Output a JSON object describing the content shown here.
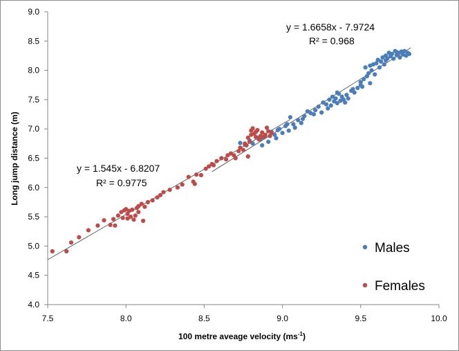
{
  "chart_data": {
    "type": "scatter",
    "title": "",
    "xlabel": "100 metre aveage velocity (ms",
    "xlabel_sup": "-1",
    "xlabel_close": ")",
    "ylabel": "Long jump distance (m)",
    "xlim": [
      7.5,
      10.0
    ],
    "ylim": [
      4.0,
      9.0
    ],
    "x_ticks": [
      "7.5",
      "8.0",
      "8.5",
      "9.0",
      "9.5",
      "10.0"
    ],
    "y_ticks": [
      "4.0",
      "4.5",
      "5.0",
      "5.5",
      "6.0",
      "6.5",
      "7.0",
      "7.5",
      "8.0",
      "8.5",
      "9.0"
    ],
    "grid": false,
    "legend_position": "bottom-right",
    "series": [
      {
        "name": "Males",
        "color": "#4a7ebb",
        "trendline": {
          "slope": 1.6658,
          "intercept": -7.9724,
          "equation": "y = 1.6658x - 7.9724",
          "r2_label": "R² = 0.968"
        },
        "points": [
          [
            8.73,
            6.76
          ],
          [
            8.76,
            6.73
          ],
          [
            8.79,
            6.8
          ],
          [
            8.81,
            6.75
          ],
          [
            8.84,
            6.85
          ],
          [
            8.86,
            6.82
          ],
          [
            8.87,
            6.72
          ],
          [
            8.89,
            6.88
          ],
          [
            8.91,
            6.78
          ],
          [
            8.93,
            6.95
          ],
          [
            8.95,
            6.9
          ],
          [
            8.96,
            6.84
          ],
          [
            8.98,
            7.0
          ],
          [
            9.0,
            6.93
          ],
          [
            9.02,
            7.05
          ],
          [
            9.04,
            6.97
          ],
          [
            9.05,
            7.2
          ],
          [
            9.07,
            7.08
          ],
          [
            9.08,
            7.02
          ],
          [
            9.1,
            7.15
          ],
          [
            9.12,
            7.1
          ],
          [
            9.14,
            7.22
          ],
          [
            9.16,
            7.3
          ],
          [
            9.18,
            7.27
          ],
          [
            9.21,
            7.32
          ],
          [
            9.23,
            7.38
          ],
          [
            9.25,
            7.28
          ],
          [
            9.26,
            7.45
          ],
          [
            9.28,
            7.42
          ],
          [
            9.29,
            7.35
          ],
          [
            9.3,
            7.5
          ],
          [
            9.31,
            7.4
          ],
          [
            9.32,
            7.55
          ],
          [
            9.33,
            7.47
          ],
          [
            9.34,
            7.52
          ],
          [
            9.35,
            7.44
          ],
          [
            9.36,
            7.6
          ],
          [
            9.37,
            7.48
          ],
          [
            9.38,
            7.55
          ],
          [
            9.39,
            7.5
          ],
          [
            9.4,
            7.45
          ],
          [
            9.41,
            7.58
          ],
          [
            9.42,
            7.52
          ],
          [
            9.44,
            7.65
          ],
          [
            9.46,
            7.62
          ],
          [
            9.48,
            7.7
          ],
          [
            9.5,
            7.8
          ],
          [
            9.51,
            7.72
          ],
          [
            9.52,
            7.85
          ],
          [
            9.53,
            8.05
          ],
          [
            9.54,
            7.9
          ],
          [
            9.55,
            7.95
          ],
          [
            9.56,
            8.08
          ],
          [
            9.57,
            8.0
          ],
          [
            9.58,
            8.1
          ],
          [
            9.59,
            7.93
          ],
          [
            9.6,
            8.12
          ],
          [
            9.61,
            8.18
          ],
          [
            9.62,
            8.05
          ],
          [
            9.63,
            8.15
          ],
          [
            9.64,
            8.22
          ],
          [
            9.65,
            8.1
          ],
          [
            9.66,
            8.25
          ],
          [
            9.67,
            8.2
          ],
          [
            9.68,
            8.3
          ],
          [
            9.69,
            8.24
          ],
          [
            9.7,
            8.28
          ],
          [
            9.71,
            8.2
          ],
          [
            9.72,
            8.33
          ],
          [
            9.73,
            8.26
          ],
          [
            9.74,
            8.3
          ],
          [
            9.75,
            8.22
          ],
          [
            9.76,
            8.32
          ],
          [
            9.77,
            8.27
          ],
          [
            9.78,
            8.33
          ],
          [
            9.79,
            8.25
          ],
          [
            9.8,
            8.3
          ],
          [
            9.81,
            8.28
          ],
          [
            9.56,
            7.78
          ],
          [
            9.45,
            7.68
          ],
          [
            9.35,
            7.62
          ],
          [
            9.2,
            7.25
          ],
          [
            9.13,
            7.17
          ],
          [
            9.03,
            7.08
          ],
          [
            8.97,
            6.98
          ],
          [
            9.66,
            8.17
          ],
          [
            9.73,
            8.31
          ],
          [
            9.5,
            7.75
          ]
        ]
      },
      {
        "name": "Females",
        "color": "#be4b48",
        "trendline": {
          "slope": 1.545,
          "intercept": -6.8207,
          "equation": "y = 1.545x - 6.8207",
          "r2_label": "R² = 0.9775"
        },
        "points": [
          [
            7.53,
            4.91
          ],
          [
            7.62,
            4.91
          ],
          [
            7.65,
            5.06
          ],
          [
            7.7,
            5.15
          ],
          [
            7.76,
            5.27
          ],
          [
            7.82,
            5.35
          ],
          [
            7.86,
            5.44
          ],
          [
            7.9,
            5.36
          ],
          [
            7.92,
            5.46
          ],
          [
            7.93,
            5.35
          ],
          [
            7.95,
            5.52
          ],
          [
            7.97,
            5.58
          ],
          [
            7.98,
            5.48
          ],
          [
            8.0,
            5.63
          ],
          [
            8.01,
            5.55
          ],
          [
            8.02,
            5.6
          ],
          [
            8.03,
            5.5
          ],
          [
            8.04,
            5.62
          ],
          [
            8.05,
            5.45
          ],
          [
            8.06,
            5.52
          ],
          [
            8.07,
            5.65
          ],
          [
            8.08,
            5.58
          ],
          [
            8.1,
            5.72
          ],
          [
            8.12,
            5.67
          ],
          [
            8.11,
            5.43
          ],
          [
            8.14,
            5.75
          ],
          [
            8.17,
            5.78
          ],
          [
            8.2,
            5.83
          ],
          [
            8.24,
            5.92
          ],
          [
            8.28,
            5.96
          ],
          [
            8.33,
            6.0
          ],
          [
            8.36,
            6.05
          ],
          [
            8.4,
            6.18
          ],
          [
            8.43,
            6.1
          ],
          [
            8.45,
            6.22
          ],
          [
            8.48,
            6.21
          ],
          [
            8.51,
            6.32
          ],
          [
            8.53,
            6.36
          ],
          [
            8.55,
            6.4
          ],
          [
            8.58,
            6.45
          ],
          [
            8.61,
            6.5
          ],
          [
            8.64,
            6.48
          ],
          [
            8.67,
            6.58
          ],
          [
            8.69,
            6.55
          ],
          [
            8.7,
            6.5
          ],
          [
            8.72,
            6.62
          ],
          [
            8.73,
            6.68
          ],
          [
            8.75,
            6.64
          ],
          [
            8.76,
            6.75
          ],
          [
            8.77,
            6.72
          ],
          [
            8.78,
            6.85
          ],
          [
            8.79,
            6.78
          ],
          [
            8.8,
            6.9
          ],
          [
            8.8,
            6.97
          ],
          [
            8.81,
            7.01
          ],
          [
            8.82,
            6.92
          ],
          [
            8.83,
            6.86
          ],
          [
            8.84,
            6.98
          ],
          [
            8.85,
            6.82
          ],
          [
            8.86,
            6.88
          ],
          [
            8.87,
            6.94
          ],
          [
            8.88,
            6.86
          ],
          [
            8.89,
            6.9
          ],
          [
            8.9,
            7.02
          ],
          [
            8.91,
            6.96
          ],
          [
            8.92,
            6.88
          ],
          [
            8.93,
            6.93
          ],
          [
            8.78,
            6.53
          ],
          [
            8.65,
            6.55
          ],
          [
            8.56,
            6.38
          ],
          [
            8.01,
            5.47
          ],
          [
            8.08,
            5.68
          ],
          [
            7.99,
            5.61
          ],
          [
            8.22,
            5.87
          ],
          [
            8.44,
            6.06
          ],
          [
            8.83,
            6.95
          ]
        ]
      }
    ]
  }
}
